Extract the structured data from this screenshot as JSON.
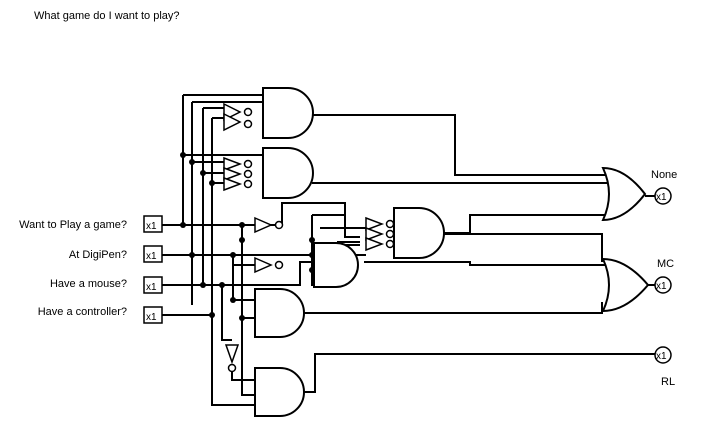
{
  "title": "What game do I want to play?",
  "inputs": [
    {
      "label": "Want to Play a game?",
      "value": "x1"
    },
    {
      "label": "At DigiPen?",
      "value": "x1"
    },
    {
      "label": "Have a mouse?",
      "value": "x1"
    },
    {
      "label": "Have a controller?",
      "value": "x1"
    }
  ],
  "outputs": [
    {
      "label": "None",
      "value": "x1"
    },
    {
      "label": "MC",
      "value": "x1"
    },
    {
      "label": "RL",
      "value": "x1"
    }
  ]
}
